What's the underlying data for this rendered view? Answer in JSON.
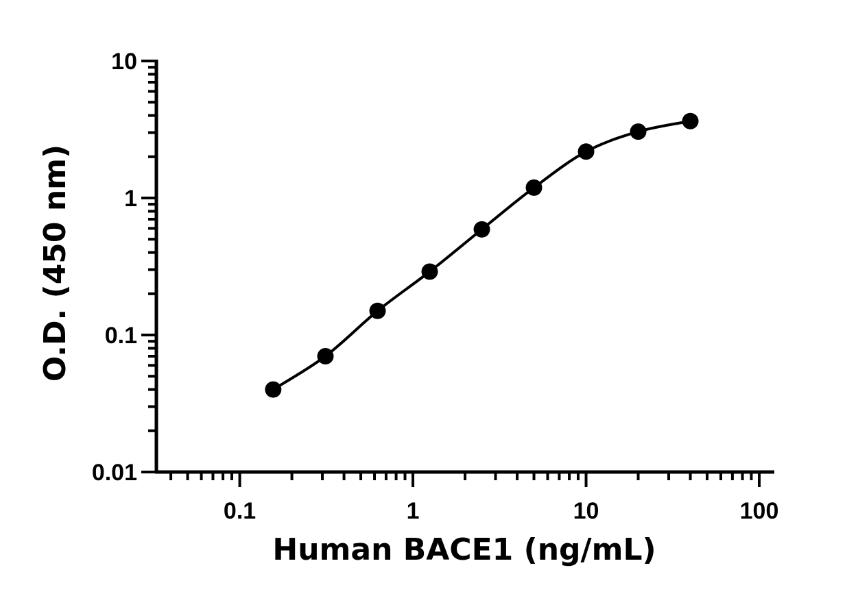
{
  "chart_data": {
    "type": "scatter",
    "title": "",
    "xlabel": "Human BACE1 (ng/mL)",
    "ylabel": "O.D. (450 nm)",
    "x_scale": "log",
    "y_scale": "log",
    "xlim": [
      0.033,
      120
    ],
    "ylim": [
      0.01,
      10
    ],
    "x_ticks": [
      {
        "value": 0.1,
        "label": "0.1"
      },
      {
        "value": 1,
        "label": "1"
      },
      {
        "value": 10,
        "label": "10"
      },
      {
        "value": 100,
        "label": "100"
      }
    ],
    "y_ticks": [
      {
        "value": 0.01,
        "label": "0.01"
      },
      {
        "value": 0.1,
        "label": "0.1"
      },
      {
        "value": 1,
        "label": "1"
      },
      {
        "value": 10,
        "label": "10"
      }
    ],
    "grid": false,
    "legend": "none",
    "series": [
      {
        "x": [
          0.156,
          0.3125,
          0.625,
          1.25,
          2.5,
          5,
          10,
          20,
          40
        ],
        "y": [
          0.04,
          0.07,
          0.15,
          0.29,
          0.59,
          1.19,
          2.18,
          3.05,
          3.64
        ],
        "marker": "circle",
        "fit_line": true,
        "color": "#000000"
      }
    ]
  }
}
